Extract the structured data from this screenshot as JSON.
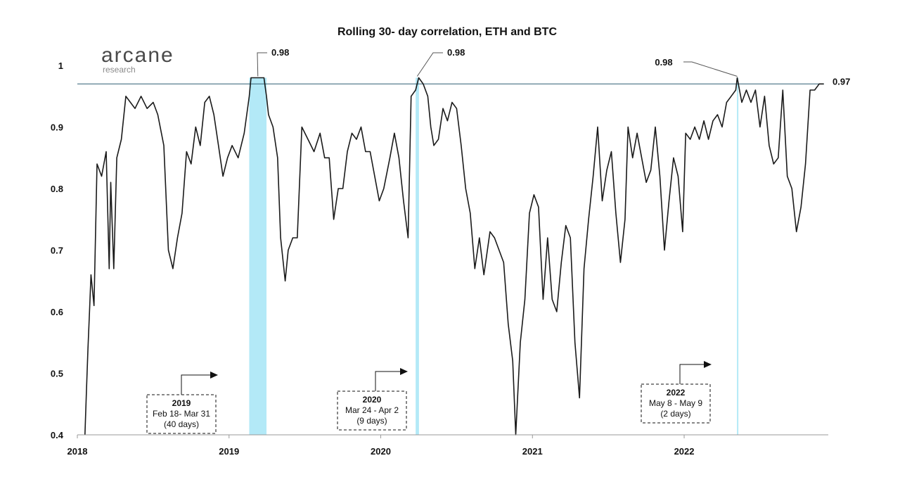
{
  "logo": {
    "name": "arcane",
    "sub": "research"
  },
  "chart_data": {
    "type": "line",
    "title": "Rolling 30- day correlation, ETH and BTC",
    "xlabel": "",
    "ylabel": "",
    "xlim": [
      2018.0,
      2022.95
    ],
    "ylim": [
      0.4,
      1.0
    ],
    "x_ticks": [
      {
        "value": 2018,
        "label": "2018"
      },
      {
        "value": 2019,
        "label": "2019"
      },
      {
        "value": 2020,
        "label": "2020"
      },
      {
        "value": 2021,
        "label": "2021"
      },
      {
        "value": 2022,
        "label": "2022"
      }
    ],
    "y_ticks": [
      {
        "value": 0.4,
        "label": "0.4"
      },
      {
        "value": 0.5,
        "label": "0.5"
      },
      {
        "value": 0.6,
        "label": "0.6"
      },
      {
        "value": 0.7,
        "label": "0.7"
      },
      {
        "value": 0.8,
        "label": "0.8"
      },
      {
        "value": 0.9,
        "label": "0.9"
      },
      {
        "value": 1.0,
        "label": "1"
      }
    ],
    "reference_line": {
      "y": 0.97,
      "label": "0.97",
      "color": "#2f5e72"
    },
    "line_color": "#1a1a1a",
    "highlight_color": "#b3e9f7",
    "highlights": [
      {
        "from": 2019.133,
        "to": 2019.247
      },
      {
        "from": 2020.23,
        "to": 2020.252
      },
      {
        "from": 2022.348,
        "to": 2022.352
      }
    ],
    "peaks": [
      {
        "x": 2019.19,
        "y": 0.98,
        "label": "0.98"
      },
      {
        "x": 2020.24,
        "y": 0.98,
        "label": "0.98"
      },
      {
        "x": 2022.35,
        "y": 0.98,
        "label": "0.98"
      }
    ],
    "notes": [
      {
        "year": "2019",
        "range": "Feb 18- Mar 31",
        "days": "(40 days)"
      },
      {
        "year": "2020",
        "range": "Mar 24 - Apr 2",
        "days": "(9 days)"
      },
      {
        "year": "2022",
        "range": "May 8 - May 9",
        "days": "(2 days)"
      }
    ],
    "series": [
      {
        "points": [
          [
            2018.05,
            0.4
          ],
          [
            2018.06,
            0.47
          ],
          [
            2018.07,
            0.54
          ],
          [
            2018.08,
            0.6
          ],
          [
            2018.09,
            0.66
          ],
          [
            2018.11,
            0.61
          ],
          [
            2018.13,
            0.84
          ],
          [
            2018.16,
            0.82
          ],
          [
            2018.19,
            0.86
          ],
          [
            2018.21,
            0.67
          ],
          [
            2018.22,
            0.81
          ],
          [
            2018.24,
            0.67
          ],
          [
            2018.26,
            0.85
          ],
          [
            2018.29,
            0.88
          ],
          [
            2018.32,
            0.95
          ],
          [
            2018.35,
            0.94
          ],
          [
            2018.38,
            0.93
          ],
          [
            2018.42,
            0.95
          ],
          [
            2018.46,
            0.93
          ],
          [
            2018.5,
            0.94
          ],
          [
            2018.53,
            0.92
          ],
          [
            2018.57,
            0.87
          ],
          [
            2018.6,
            0.7
          ],
          [
            2018.63,
            0.67
          ],
          [
            2018.66,
            0.72
          ],
          [
            2018.69,
            0.76
          ],
          [
            2018.72,
            0.86
          ],
          [
            2018.75,
            0.84
          ],
          [
            2018.78,
            0.9
          ],
          [
            2018.81,
            0.87
          ],
          [
            2018.84,
            0.94
          ],
          [
            2018.87,
            0.95
          ],
          [
            2018.9,
            0.92
          ],
          [
            2018.93,
            0.87
          ],
          [
            2018.96,
            0.82
          ],
          [
            2018.99,
            0.85
          ],
          [
            2019.02,
            0.87
          ],
          [
            2019.06,
            0.85
          ],
          [
            2019.1,
            0.89
          ],
          [
            2019.133,
            0.95
          ],
          [
            2019.145,
            0.98
          ],
          [
            2019.19,
            0.98
          ],
          [
            2019.23,
            0.98
          ],
          [
            2019.247,
            0.95
          ],
          [
            2019.26,
            0.92
          ],
          [
            2019.29,
            0.9
          ],
          [
            2019.32,
            0.85
          ],
          [
            2019.34,
            0.72
          ],
          [
            2019.37,
            0.65
          ],
          [
            2019.39,
            0.7
          ],
          [
            2019.42,
            0.72
          ],
          [
            2019.45,
            0.72
          ],
          [
            2019.48,
            0.9
          ],
          [
            2019.52,
            0.88
          ],
          [
            2019.56,
            0.86
          ],
          [
            2019.6,
            0.89
          ],
          [
            2019.63,
            0.85
          ],
          [
            2019.66,
            0.85
          ],
          [
            2019.69,
            0.75
          ],
          [
            2019.72,
            0.8
          ],
          [
            2019.75,
            0.8
          ],
          [
            2019.78,
            0.86
          ],
          [
            2019.81,
            0.89
          ],
          [
            2019.84,
            0.88
          ],
          [
            2019.87,
            0.9
          ],
          [
            2019.9,
            0.86
          ],
          [
            2019.93,
            0.86
          ],
          [
            2019.96,
            0.82
          ],
          [
            2019.99,
            0.78
          ],
          [
            2020.02,
            0.8
          ],
          [
            2020.06,
            0.85
          ],
          [
            2020.09,
            0.89
          ],
          [
            2020.12,
            0.85
          ],
          [
            2020.15,
            0.78
          ],
          [
            2020.18,
            0.72
          ],
          [
            2020.2,
            0.95
          ],
          [
            2020.23,
            0.96
          ],
          [
            2020.25,
            0.98
          ],
          [
            2020.28,
            0.97
          ],
          [
            2020.31,
            0.95
          ],
          [
            2020.33,
            0.9
          ],
          [
            2020.35,
            0.87
          ],
          [
            2020.38,
            0.88
          ],
          [
            2020.41,
            0.93
          ],
          [
            2020.44,
            0.91
          ],
          [
            2020.47,
            0.94
          ],
          [
            2020.5,
            0.93
          ],
          [
            2020.53,
            0.87
          ],
          [
            2020.56,
            0.8
          ],
          [
            2020.59,
            0.76
          ],
          [
            2020.62,
            0.67
          ],
          [
            2020.65,
            0.72
          ],
          [
            2020.68,
            0.66
          ],
          [
            2020.72,
            0.73
          ],
          [
            2020.75,
            0.72
          ],
          [
            2020.78,
            0.7
          ],
          [
            2020.81,
            0.68
          ],
          [
            2020.84,
            0.58
          ],
          [
            2020.87,
            0.52
          ],
          [
            2020.89,
            0.4
          ],
          [
            2020.92,
            0.55
          ],
          [
            2020.95,
            0.62
          ],
          [
            2020.98,
            0.76
          ],
          [
            2021.01,
            0.79
          ],
          [
            2021.04,
            0.77
          ],
          [
            2021.07,
            0.62
          ],
          [
            2021.1,
            0.72
          ],
          [
            2021.13,
            0.62
          ],
          [
            2021.16,
            0.6
          ],
          [
            2021.19,
            0.68
          ],
          [
            2021.22,
            0.74
          ],
          [
            2021.25,
            0.72
          ],
          [
            2021.28,
            0.55
          ],
          [
            2021.31,
            0.46
          ],
          [
            2021.34,
            0.67
          ],
          [
            2021.37,
            0.75
          ],
          [
            2021.4,
            0.82
          ],
          [
            2021.43,
            0.9
          ],
          [
            2021.46,
            0.78
          ],
          [
            2021.49,
            0.83
          ],
          [
            2021.52,
            0.86
          ],
          [
            2021.55,
            0.76
          ],
          [
            2021.58,
            0.68
          ],
          [
            2021.61,
            0.75
          ],
          [
            2021.63,
            0.9
          ],
          [
            2021.66,
            0.85
          ],
          [
            2021.69,
            0.89
          ],
          [
            2021.72,
            0.85
          ],
          [
            2021.75,
            0.81
          ],
          [
            2021.78,
            0.83
          ],
          [
            2021.81,
            0.9
          ],
          [
            2021.84,
            0.82
          ],
          [
            2021.87,
            0.7
          ],
          [
            2021.9,
            0.78
          ],
          [
            2021.93,
            0.85
          ],
          [
            2021.96,
            0.82
          ],
          [
            2021.99,
            0.73
          ],
          [
            2022.01,
            0.89
          ],
          [
            2022.04,
            0.88
          ],
          [
            2022.07,
            0.9
          ],
          [
            2022.1,
            0.88
          ],
          [
            2022.13,
            0.91
          ],
          [
            2022.16,
            0.88
          ],
          [
            2022.19,
            0.91
          ],
          [
            2022.22,
            0.92
          ],
          [
            2022.25,
            0.9
          ],
          [
            2022.28,
            0.94
          ],
          [
            2022.31,
            0.95
          ],
          [
            2022.34,
            0.96
          ],
          [
            2022.35,
            0.98
          ],
          [
            2022.38,
            0.94
          ],
          [
            2022.41,
            0.96
          ],
          [
            2022.44,
            0.94
          ],
          [
            2022.47,
            0.96
          ],
          [
            2022.5,
            0.9
          ],
          [
            2022.53,
            0.95
          ],
          [
            2022.56,
            0.87
          ],
          [
            2022.59,
            0.84
          ],
          [
            2022.62,
            0.85
          ],
          [
            2022.65,
            0.96
          ],
          [
            2022.68,
            0.82
          ],
          [
            2022.71,
            0.8
          ],
          [
            2022.74,
            0.73
          ],
          [
            2022.77,
            0.77
          ],
          [
            2022.8,
            0.84
          ],
          [
            2022.83,
            0.96
          ],
          [
            2022.86,
            0.96
          ],
          [
            2022.89,
            0.97
          ],
          [
            2022.92,
            0.97
          ]
        ]
      }
    ]
  }
}
